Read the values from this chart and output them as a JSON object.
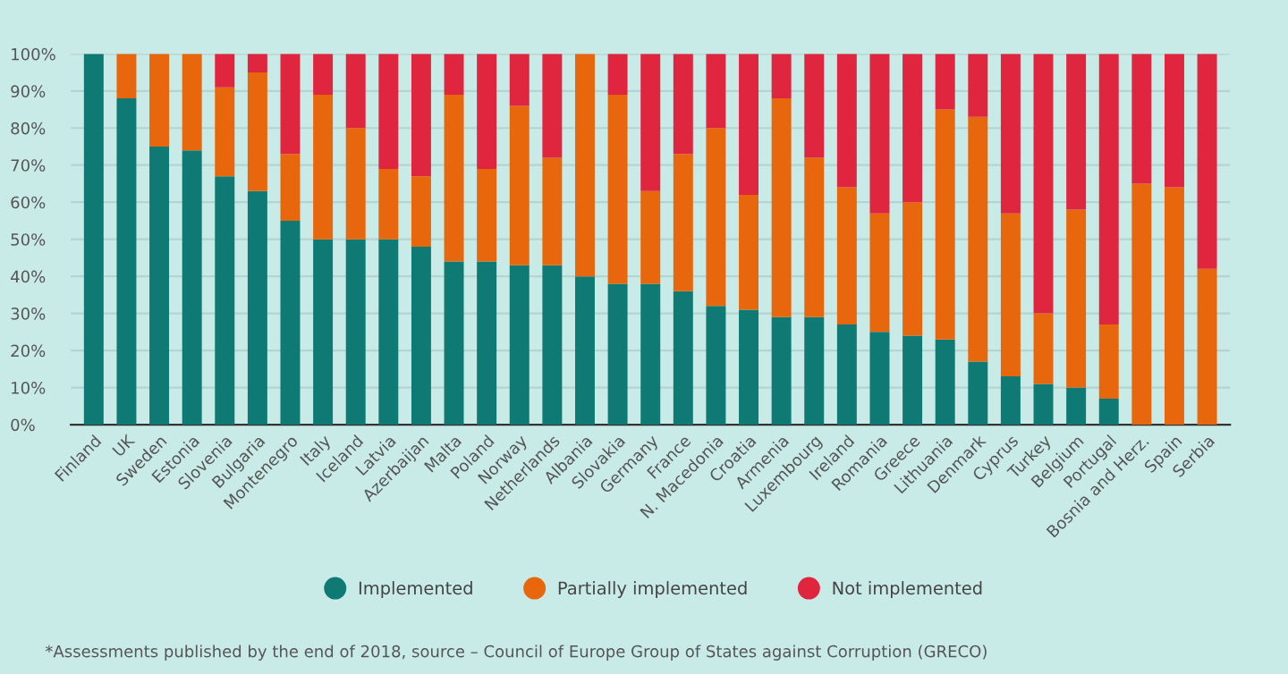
{
  "chart_data": {
    "type": "bar",
    "stacked": true,
    "categories": [
      "Finland",
      "UK",
      "Sweden",
      "Estonia",
      "Slovenia",
      "Bulgaria",
      "Montenegro",
      "Italy",
      "Iceland",
      "Latvia",
      "Azerbaijan",
      "Malta",
      "Poland",
      "Norway",
      "Netherlands",
      "Albania",
      "Slovakia",
      "Germany",
      "France",
      "N. Macedonia",
      "Croatia",
      "Armenia",
      "Luxembourg",
      "Ireland",
      "Romania",
      "Greece",
      "Lithuania",
      "Denmark",
      "Cyprus",
      "Turkey",
      "Belgium",
      "Portugal",
      "Bosnia and Herz.",
      "Spain",
      "Serbia"
    ],
    "series": [
      {
        "name": "Implemented",
        "color": "#0f7a73",
        "values": [
          100,
          88,
          75,
          74,
          67,
          63,
          55,
          50,
          50,
          50,
          48,
          44,
          44,
          43,
          43,
          40,
          38,
          38,
          36,
          32,
          31,
          29,
          29,
          27,
          25,
          24,
          23,
          17,
          13,
          11,
          10,
          7,
          0,
          0,
          0
        ]
      },
      {
        "name": "Partially implemented",
        "color": "#e8670c",
        "values": [
          0,
          12,
          25,
          26,
          24,
          32,
          18,
          39,
          30,
          19,
          19,
          45,
          25,
          43,
          29,
          60,
          51,
          25,
          37,
          48,
          31,
          59,
          43,
          37,
          32,
          36,
          62,
          66,
          44,
          19,
          48,
          20,
          65,
          64,
          42
        ]
      },
      {
        "name": "Not implemented",
        "color": "#e0253f",
        "values": [
          0,
          0,
          0,
          0,
          9,
          5,
          27,
          11,
          20,
          31,
          33,
          11,
          31,
          14,
          28,
          0,
          11,
          37,
          27,
          20,
          38,
          12,
          28,
          36,
          43,
          40,
          15,
          17,
          43,
          70,
          42,
          73,
          35,
          36,
          58
        ]
      }
    ],
    "ylim": [
      0,
      100
    ],
    "yticks": [
      {
        "value": 0,
        "label": "0%"
      },
      {
        "value": 10,
        "label": "10%"
      },
      {
        "value": 20,
        "label": "20%"
      },
      {
        "value": 30,
        "label": "30%"
      },
      {
        "value": 40,
        "label": "40%"
      },
      {
        "value": 50,
        "label": "50%"
      },
      {
        "value": 60,
        "label": "60%"
      },
      {
        "value": 70,
        "label": "70%"
      },
      {
        "value": 80,
        "label": "80%"
      },
      {
        "value": 90,
        "label": "90%"
      },
      {
        "value": 100,
        "label": "100%"
      }
    ],
    "grid": "y",
    "legend": "bottom",
    "marker": "circle",
    "annotations": [
      "*Assessments published by the end of 2018, source – Council of Europe Group of States against Corruption (GRECO)"
    ]
  }
}
